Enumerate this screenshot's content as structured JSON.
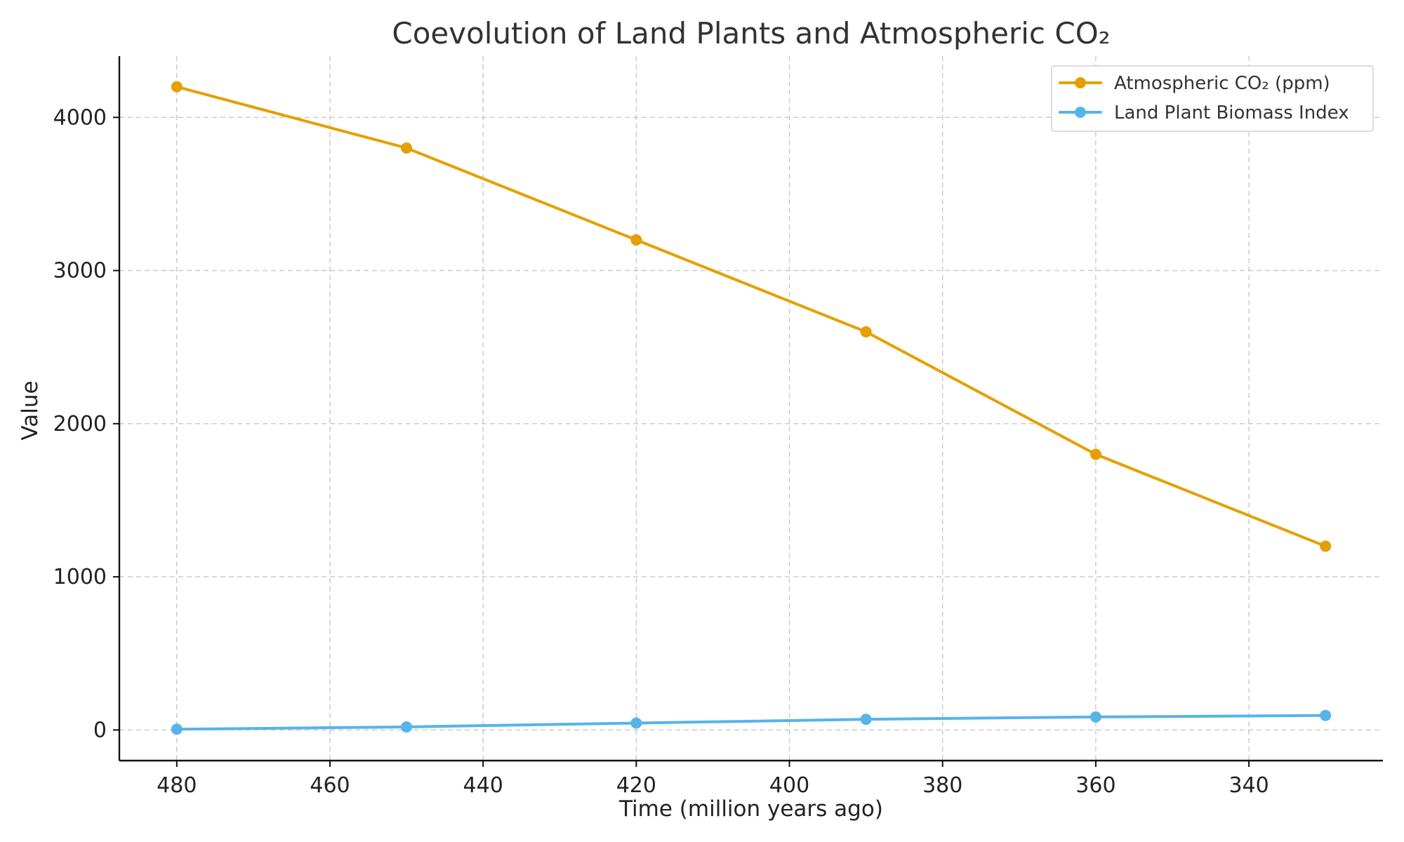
{
  "chart_data": {
    "type": "line",
    "title": "Coevolution of Land Plants and Atmospheric CO₂",
    "xlabel": "Time (million years ago)",
    "ylabel": "Value",
    "x": [
      480,
      450,
      420,
      390,
      360,
      330
    ],
    "xlim": [
      487.5,
      322.5
    ],
    "ylim": [
      -200,
      4400
    ],
    "x_ticks": [
      480,
      460,
      440,
      420,
      400,
      380,
      360,
      340
    ],
    "y_ticks": [
      0,
      1000,
      2000,
      3000,
      4000
    ],
    "x_tick_labels": [
      "480",
      "460",
      "440",
      "420",
      "400",
      "380",
      "360",
      "340"
    ],
    "y_tick_labels": [
      "0",
      "1000",
      "2000",
      "3000",
      "4000"
    ],
    "grid": true,
    "legend_position": "top-right",
    "series": [
      {
        "name": "Atmospheric CO₂ (ppm)",
        "values": [
          4200,
          3800,
          3200,
          2600,
          1800,
          1200
        ],
        "color": "#E69F00"
      },
      {
        "name": "Land Plant Biomass Index",
        "values": [
          5,
          20,
          45,
          70,
          85,
          95
        ],
        "color": "#56B4E9"
      }
    ]
  }
}
